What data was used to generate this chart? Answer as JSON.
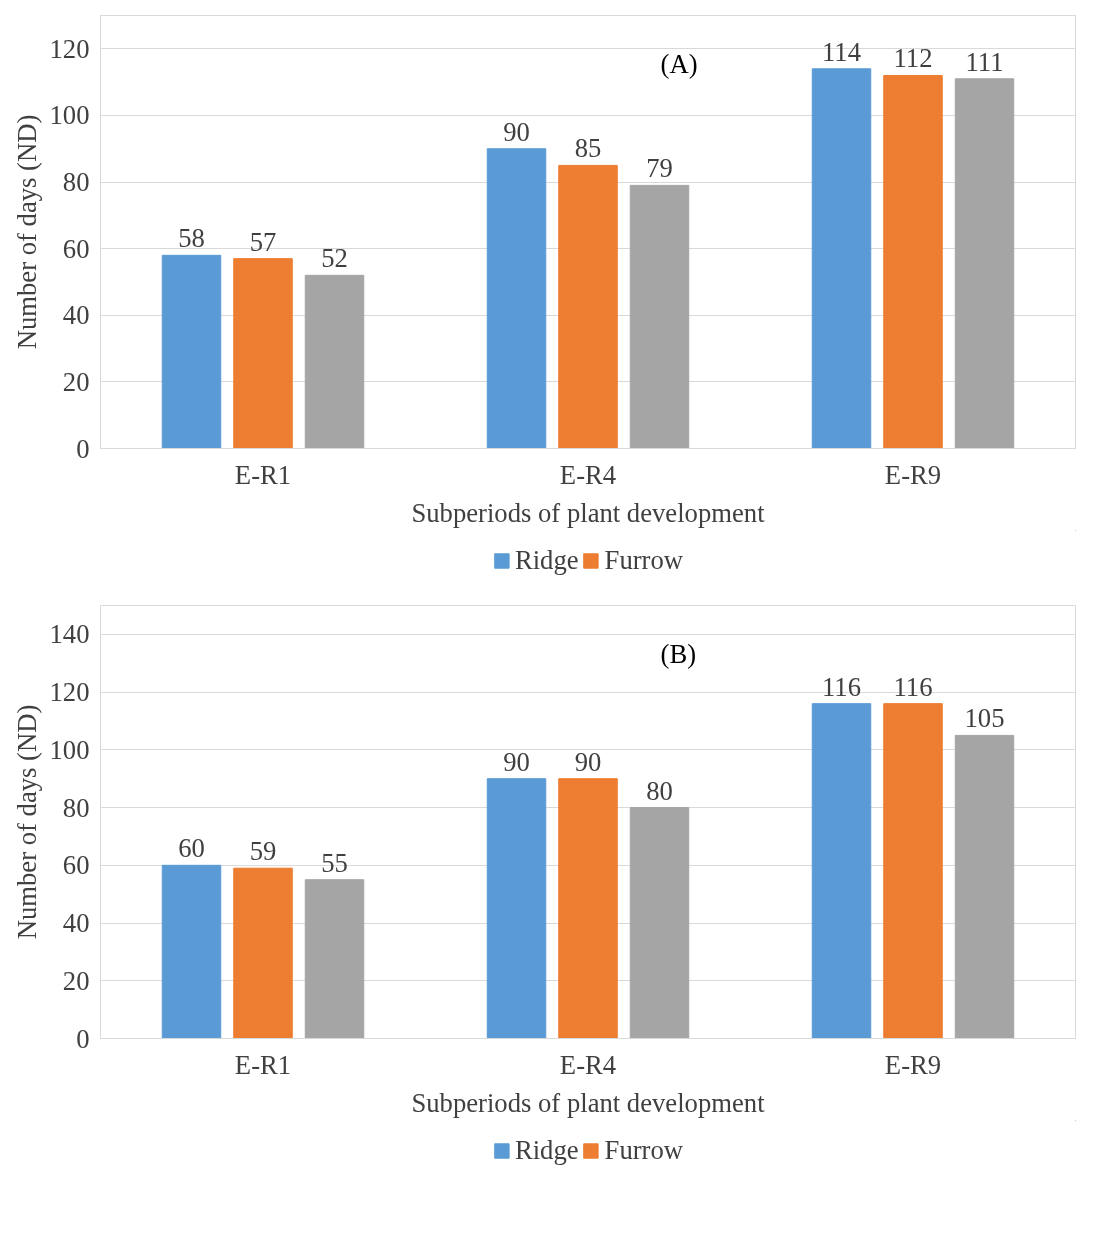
{
  "chart_data": [
    {
      "type": "bar",
      "annotations": [
        "(A)"
      ],
      "xlabel": "Subperiods of plant development",
      "ylabel": "Number of days (ND)",
      "categories": [
        "E-R1",
        "E-R4",
        "E-R9"
      ],
      "series": [
        {
          "name": "Ridge",
          "color": "#5b9bd5",
          "values": [
            58,
            90,
            114
          ]
        },
        {
          "name": "Furrow",
          "color": "#ed7d31",
          "values": [
            57,
            85,
            112
          ]
        },
        {
          "color": "#a5a5a5",
          "values": [
            52,
            79,
            111
          ]
        }
      ],
      "ylim": [
        0,
        130
      ],
      "yticks": [
        0,
        20,
        40,
        60,
        80,
        100,
        120
      ],
      "grid": "y",
      "legend": "bottom",
      "data_labels": true
    },
    {
      "type": "bar",
      "annotations": [
        "(B)"
      ],
      "xlabel": "Subperiods of plant development",
      "ylabel": "Number of days (ND)",
      "categories": [
        "E-R1",
        "E-R4",
        "E-R9"
      ],
      "series": [
        {
          "name": "Ridge",
          "color": "#5b9bd5",
          "values": [
            60,
            90,
            116
          ]
        },
        {
          "name": "Furrow",
          "color": "#ed7d31",
          "values": [
            59,
            90,
            116
          ]
        },
        {
          "color": "#a5a5a5",
          "values": [
            55,
            80,
            105
          ]
        }
      ],
      "ylim": [
        0,
        150
      ],
      "yticks": [
        0,
        20,
        40,
        60,
        80,
        100,
        120,
        140
      ],
      "grid": "y",
      "legend": "bottom",
      "data_labels": true
    }
  ]
}
